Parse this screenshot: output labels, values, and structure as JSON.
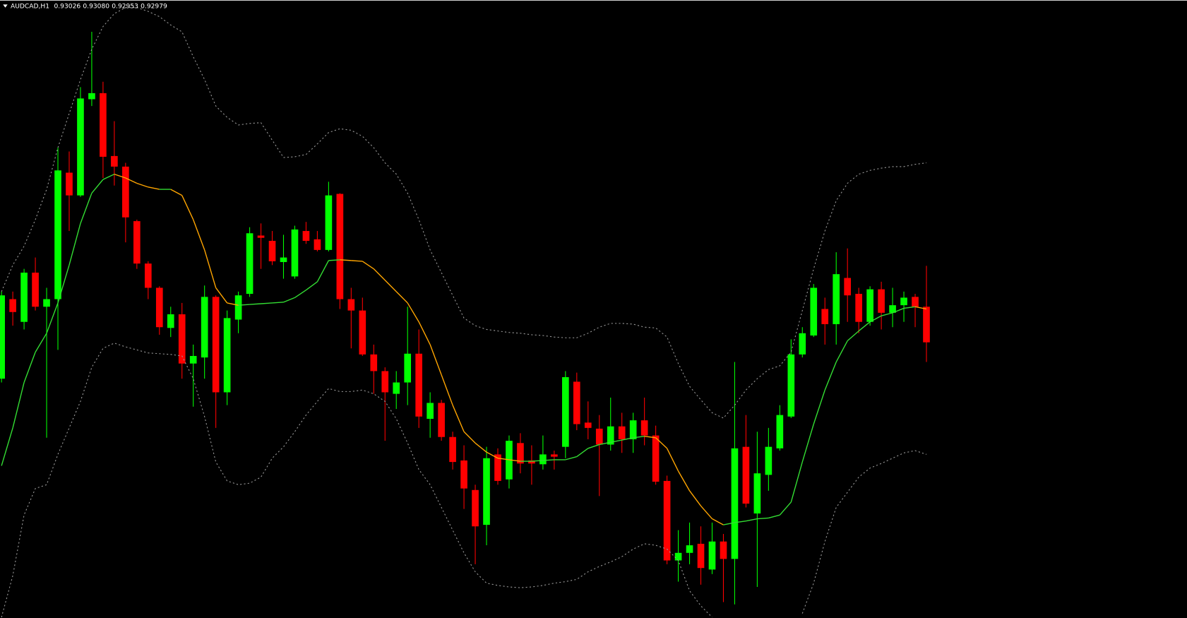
{
  "chart_data": {
    "type": "candlestick",
    "title": "AUDCAD,H1",
    "header_quote": [
      {
        "value": 0.93026,
        "label": "0.93026"
      },
      {
        "value": 0.9308,
        "label": "0.93080"
      },
      {
        "value": 0.92953,
        "label": "0.92953"
      },
      {
        "value": 0.92979,
        "label": "0.92979"
      }
    ],
    "ylim": [
      0.92615,
      0.93431
    ],
    "up_color": "#00ff00",
    "down_color": "#ff0000",
    "open": [
      0.92931,
      0.93036,
      0.93006,
      0.93071,
      0.93026,
      0.93036,
      0.93203,
      0.93173,
      0.933,
      0.93308,
      0.93225,
      0.93211,
      0.93139,
      0.93083,
      0.93051,
      0.92998,
      0.93016,
      0.92951,
      0.92959,
      0.93039,
      0.92913,
      0.93009,
      0.93043,
      0.9312,
      0.93113,
      0.93085,
      0.93066,
      0.93126,
      0.93115,
      0.93101,
      0.93175,
      0.93036,
      0.93021,
      0.92963,
      0.92941,
      0.92911,
      0.92926,
      0.92964,
      0.92878,
      0.92899,
      0.92854,
      0.92823,
      0.92784,
      0.92738,
      0.92831,
      0.92798,
      0.92846,
      0.92823,
      0.92818,
      0.92831,
      0.92841,
      0.92927,
      0.92873,
      0.92865,
      0.92844,
      0.92868,
      0.92851,
      0.92876,
      0.92856,
      0.92796,
      0.92691,
      0.92701,
      0.92713,
      0.92679,
      0.92716,
      0.92693,
      0.92841,
      0.92753,
      0.92804,
      0.92839,
      0.92881,
      0.92963,
      0.92988,
      0.93023,
      0.93003,
      0.93064,
      0.93043,
      0.93006,
      0.93049,
      0.93018,
      0.93028,
      0.93039,
      0.93026
    ],
    "high": [
      0.93046,
      0.93046,
      0.93076,
      0.93091,
      0.93051,
      0.93236,
      0.93231,
      0.93316,
      0.93389,
      0.93323,
      0.93271,
      0.93216,
      0.93141,
      0.93086,
      0.93053,
      0.93026,
      0.93031,
      0.92976,
      0.93054,
      0.93041,
      0.93021,
      0.93046,
      0.93131,
      0.93136,
      0.93126,
      0.93121,
      0.93133,
      0.93138,
      0.93126,
      0.93191,
      0.93176,
      0.93051,
      0.93038,
      0.92976,
      0.92946,
      0.92941,
      0.93026,
      0.92996,
      0.92913,
      0.92903,
      0.92861,
      0.92843,
      0.92791,
      0.92841,
      0.92839,
      0.92856,
      0.92859,
      0.92843,
      0.92856,
      0.92836,
      0.92941,
      0.92939,
      0.92901,
      0.92883,
      0.92906,
      0.92886,
      0.92886,
      0.92906,
      0.92869,
      0.92803,
      0.92731,
      0.92741,
      0.92736,
      0.92741,
      0.92726,
      0.92953,
      0.92883,
      0.92861,
      0.92866,
      0.92896,
      0.92983,
      0.92999,
      0.93056,
      0.93038,
      0.93098,
      0.93103,
      0.93051,
      0.93053,
      0.93059,
      0.93051,
      0.93046,
      0.93043,
      0.9308
    ],
    "low": [
      0.92926,
      0.93001,
      0.92996,
      0.93021,
      0.92853,
      0.92969,
      0.93126,
      0.93171,
      0.93291,
      0.93196,
      0.93186,
      0.93111,
      0.93076,
      0.93036,
      0.92989,
      0.92986,
      0.92931,
      0.92894,
      0.92931,
      0.92866,
      0.92896,
      0.92991,
      0.93039,
      0.93076,
      0.93081,
      0.93063,
      0.93063,
      0.93109,
      0.93099,
      0.93099,
      0.93023,
      0.92971,
      0.92961,
      0.92911,
      0.92849,
      0.92891,
      0.92896,
      0.92866,
      0.92853,
      0.92849,
      0.92811,
      0.92759,
      0.92686,
      0.92711,
      0.92791,
      0.92786,
      0.92806,
      0.92791,
      0.92811,
      0.92811,
      0.92826,
      0.92863,
      0.92851,
      0.92776,
      0.92836,
      0.92833,
      0.92833,
      0.92843,
      0.92791,
      0.92686,
      0.92663,
      0.92686,
      0.92659,
      0.92673,
      0.92636,
      0.92633,
      0.92761,
      0.92656,
      0.92783,
      0.92836,
      0.92879,
      0.92959,
      0.92986,
      0.92976,
      0.92976,
      0.93006,
      0.92991,
      0.93001,
      0.92996,
      0.92999,
      0.93006,
      0.92999,
      0.92953
    ],
    "close": [
      0.93041,
      0.93019,
      0.93071,
      0.93026,
      0.93036,
      0.93206,
      0.93173,
      0.93301,
      0.93308,
      0.93224,
      0.93211,
      0.93144,
      0.93083,
      0.93051,
      0.92999,
      0.93016,
      0.92951,
      0.92961,
      0.93039,
      0.92913,
      0.93011,
      0.93041,
      0.93123,
      0.93117,
      0.93086,
      0.93091,
      0.93128,
      0.93113,
      0.93101,
      0.93173,
      0.93036,
      0.93021,
      0.92963,
      0.92941,
      0.92913,
      0.92926,
      0.92964,
      0.92881,
      0.92899,
      0.92854,
      0.92821,
      0.92786,
      0.92736,
      0.92826,
      0.92796,
      0.92849,
      0.92819,
      0.92819,
      0.92831,
      0.92828,
      0.92933,
      0.92871,
      0.92866,
      0.92844,
      0.92868,
      0.92851,
      0.92876,
      0.92856,
      0.92795,
      0.92691,
      0.92701,
      0.92711,
      0.92681,
      0.92716,
      0.92693,
      0.92839,
      0.92766,
      0.92806,
      0.92841,
      0.92883,
      0.92963,
      0.92991,
      0.93051,
      0.93003,
      0.93069,
      0.93041,
      0.93006,
      0.93049,
      0.93018,
      0.93028,
      0.93038,
      0.93026,
      0.92979
    ],
    "overlays": [
      {
        "style": "dotted",
        "color": "#9a9a9a",
        "values": [
          0.93046,
          0.93081,
          0.93106,
          0.93141,
          0.93181,
          0.93236,
          0.93281,
          0.93326,
          0.93366,
          0.93396,
          0.93413,
          0.93421,
          0.93421,
          0.93416,
          0.93409,
          0.93398,
          0.93389,
          0.93356,
          0.93326,
          0.93291,
          0.93276,
          0.93266,
          0.93268,
          0.93269,
          0.93246,
          0.93223,
          0.93224,
          0.93227,
          0.93241,
          0.93256,
          0.93261,
          0.93259,
          0.93251,
          0.93236,
          0.93216,
          0.93201,
          0.93176,
          0.93141,
          0.93101,
          0.93071,
          0.93041,
          0.93011,
          0.93001,
          0.92996,
          0.92994,
          0.92992,
          0.92991,
          0.92989,
          0.92988,
          0.92986,
          0.92985,
          0.92985,
          0.92991,
          0.92999,
          0.93004,
          0.93004,
          0.93003,
          0.92999,
          0.92998,
          0.92986,
          0.92951,
          0.92921,
          0.92903,
          0.92886,
          0.92879,
          0.92896,
          0.92916,
          0.92931,
          0.92943,
          0.92948,
          0.92966,
          0.93021,
          0.93076,
          0.93126,
          0.93166,
          0.93189,
          0.93201,
          0.93206,
          0.93209,
          0.93211,
          0.93211,
          0.93214,
          0.93216
        ]
      },
      {
        "style": "dotted",
        "color": "#9a9a9a",
        "values": [
          0.92616,
          0.92671,
          0.92751,
          0.92786,
          0.92791,
          0.92831,
          0.92866,
          0.92901,
          0.92946,
          0.92971,
          0.92978,
          0.92973,
          0.92969,
          0.92965,
          0.92964,
          0.92963,
          0.92961,
          0.92931,
          0.92881,
          0.92821,
          0.92796,
          0.92791,
          0.92793,
          0.92801,
          0.92826,
          0.92841,
          0.92861,
          0.92883,
          0.92901,
          0.92918,
          0.92914,
          0.92914,
          0.92916,
          0.92911,
          0.92901,
          0.92878,
          0.92846,
          0.92811,
          0.92791,
          0.92761,
          0.92731,
          0.92701,
          0.92676,
          0.92661,
          0.92658,
          0.92656,
          0.92655,
          0.92656,
          0.92658,
          0.92661,
          0.92663,
          0.92666,
          0.92676,
          0.92683,
          0.92689,
          0.92696,
          0.92706,
          0.92713,
          0.92711,
          0.92706,
          0.92691,
          0.92651,
          0.92631,
          0.92616,
          null,
          null,
          null,
          null,
          null,
          null,
          null,
          0.92621,
          0.92661,
          0.92716,
          0.92761,
          0.92781,
          0.92801,
          0.92813,
          0.92819,
          0.92826,
          0.92833,
          0.92836,
          0.92831
        ]
      },
      {
        "style": "solid",
        "up_color": "#33dd33",
        "down_color": "#ffa500",
        "values": [
          0.92816,
          0.92866,
          0.92926,
          0.92966,
          0.92991,
          0.93031,
          0.93081,
          0.93136,
          0.93176,
          0.93194,
          0.93201,
          0.93196,
          0.93189,
          0.93184,
          0.93181,
          0.93181,
          0.93173,
          0.93141,
          0.93101,
          0.93051,
          0.93031,
          0.93028,
          0.93029,
          0.9303,
          0.93031,
          0.93032,
          0.93038,
          0.93048,
          0.93059,
          0.93087,
          0.93088,
          0.93087,
          0.93086,
          0.93076,
          0.93061,
          0.93046,
          0.93031,
          0.93006,
          0.92976,
          0.92936,
          0.92896,
          0.92861,
          0.92846,
          0.92834,
          0.92826,
          0.92824,
          0.92822,
          0.92822,
          0.92823,
          0.92824,
          0.92824,
          0.92828,
          0.92839,
          0.92844,
          0.92847,
          0.9285,
          0.92853,
          0.92855,
          0.92853,
          0.92839,
          0.92809,
          0.92783,
          0.92763,
          0.92746,
          0.92738,
          0.92741,
          0.92743,
          0.92746,
          0.92747,
          0.92751,
          0.92768,
          0.92821,
          0.92871,
          0.92916,
          0.92953,
          0.92981,
          0.92994,
          0.93006,
          0.93014,
          0.93018,
          0.93024,
          0.93026,
          0.93023
        ]
      }
    ]
  }
}
